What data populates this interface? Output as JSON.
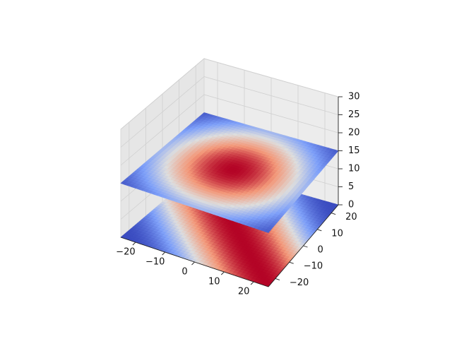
{
  "chart_data": {
    "type": "surface3d",
    "colormap": "coolwarm",
    "colors": {
      "low": "#3b4cc0",
      "mid": "#dddddd",
      "high": "#b40426",
      "pane": "#f2f2f2",
      "grid": "#d0d0d0"
    },
    "grid": true,
    "xlim": [
      -25,
      25
    ],
    "ylim": [
      -25,
      25
    ],
    "zlim": [
      0,
      30
    ],
    "x_ticks": [
      -20,
      -10,
      0,
      10,
      20
    ],
    "y_ticks": [
      -20,
      -10,
      0,
      10,
      20
    ],
    "z_ticks": [
      0,
      5,
      10,
      15,
      20,
      25,
      30
    ],
    "x_tick_labels": [
      "−20",
      "−10",
      "0",
      "10",
      "20"
    ],
    "y_tick_labels": [
      "−20",
      "−10",
      "0",
      "10",
      "20"
    ],
    "z_tick_labels": [
      "0",
      "5",
      "10",
      "15",
      "20",
      "25",
      "30"
    ],
    "series": [
      {
        "surface": "lower plane",
        "z_level": 0,
        "color_pattern": "diagonal bands, cos((x+y)/15)"
      },
      {
        "surface": "upper plane",
        "z_level": 15,
        "color_pattern": "radial, cos(r/13), peak at centre"
      }
    ]
  }
}
